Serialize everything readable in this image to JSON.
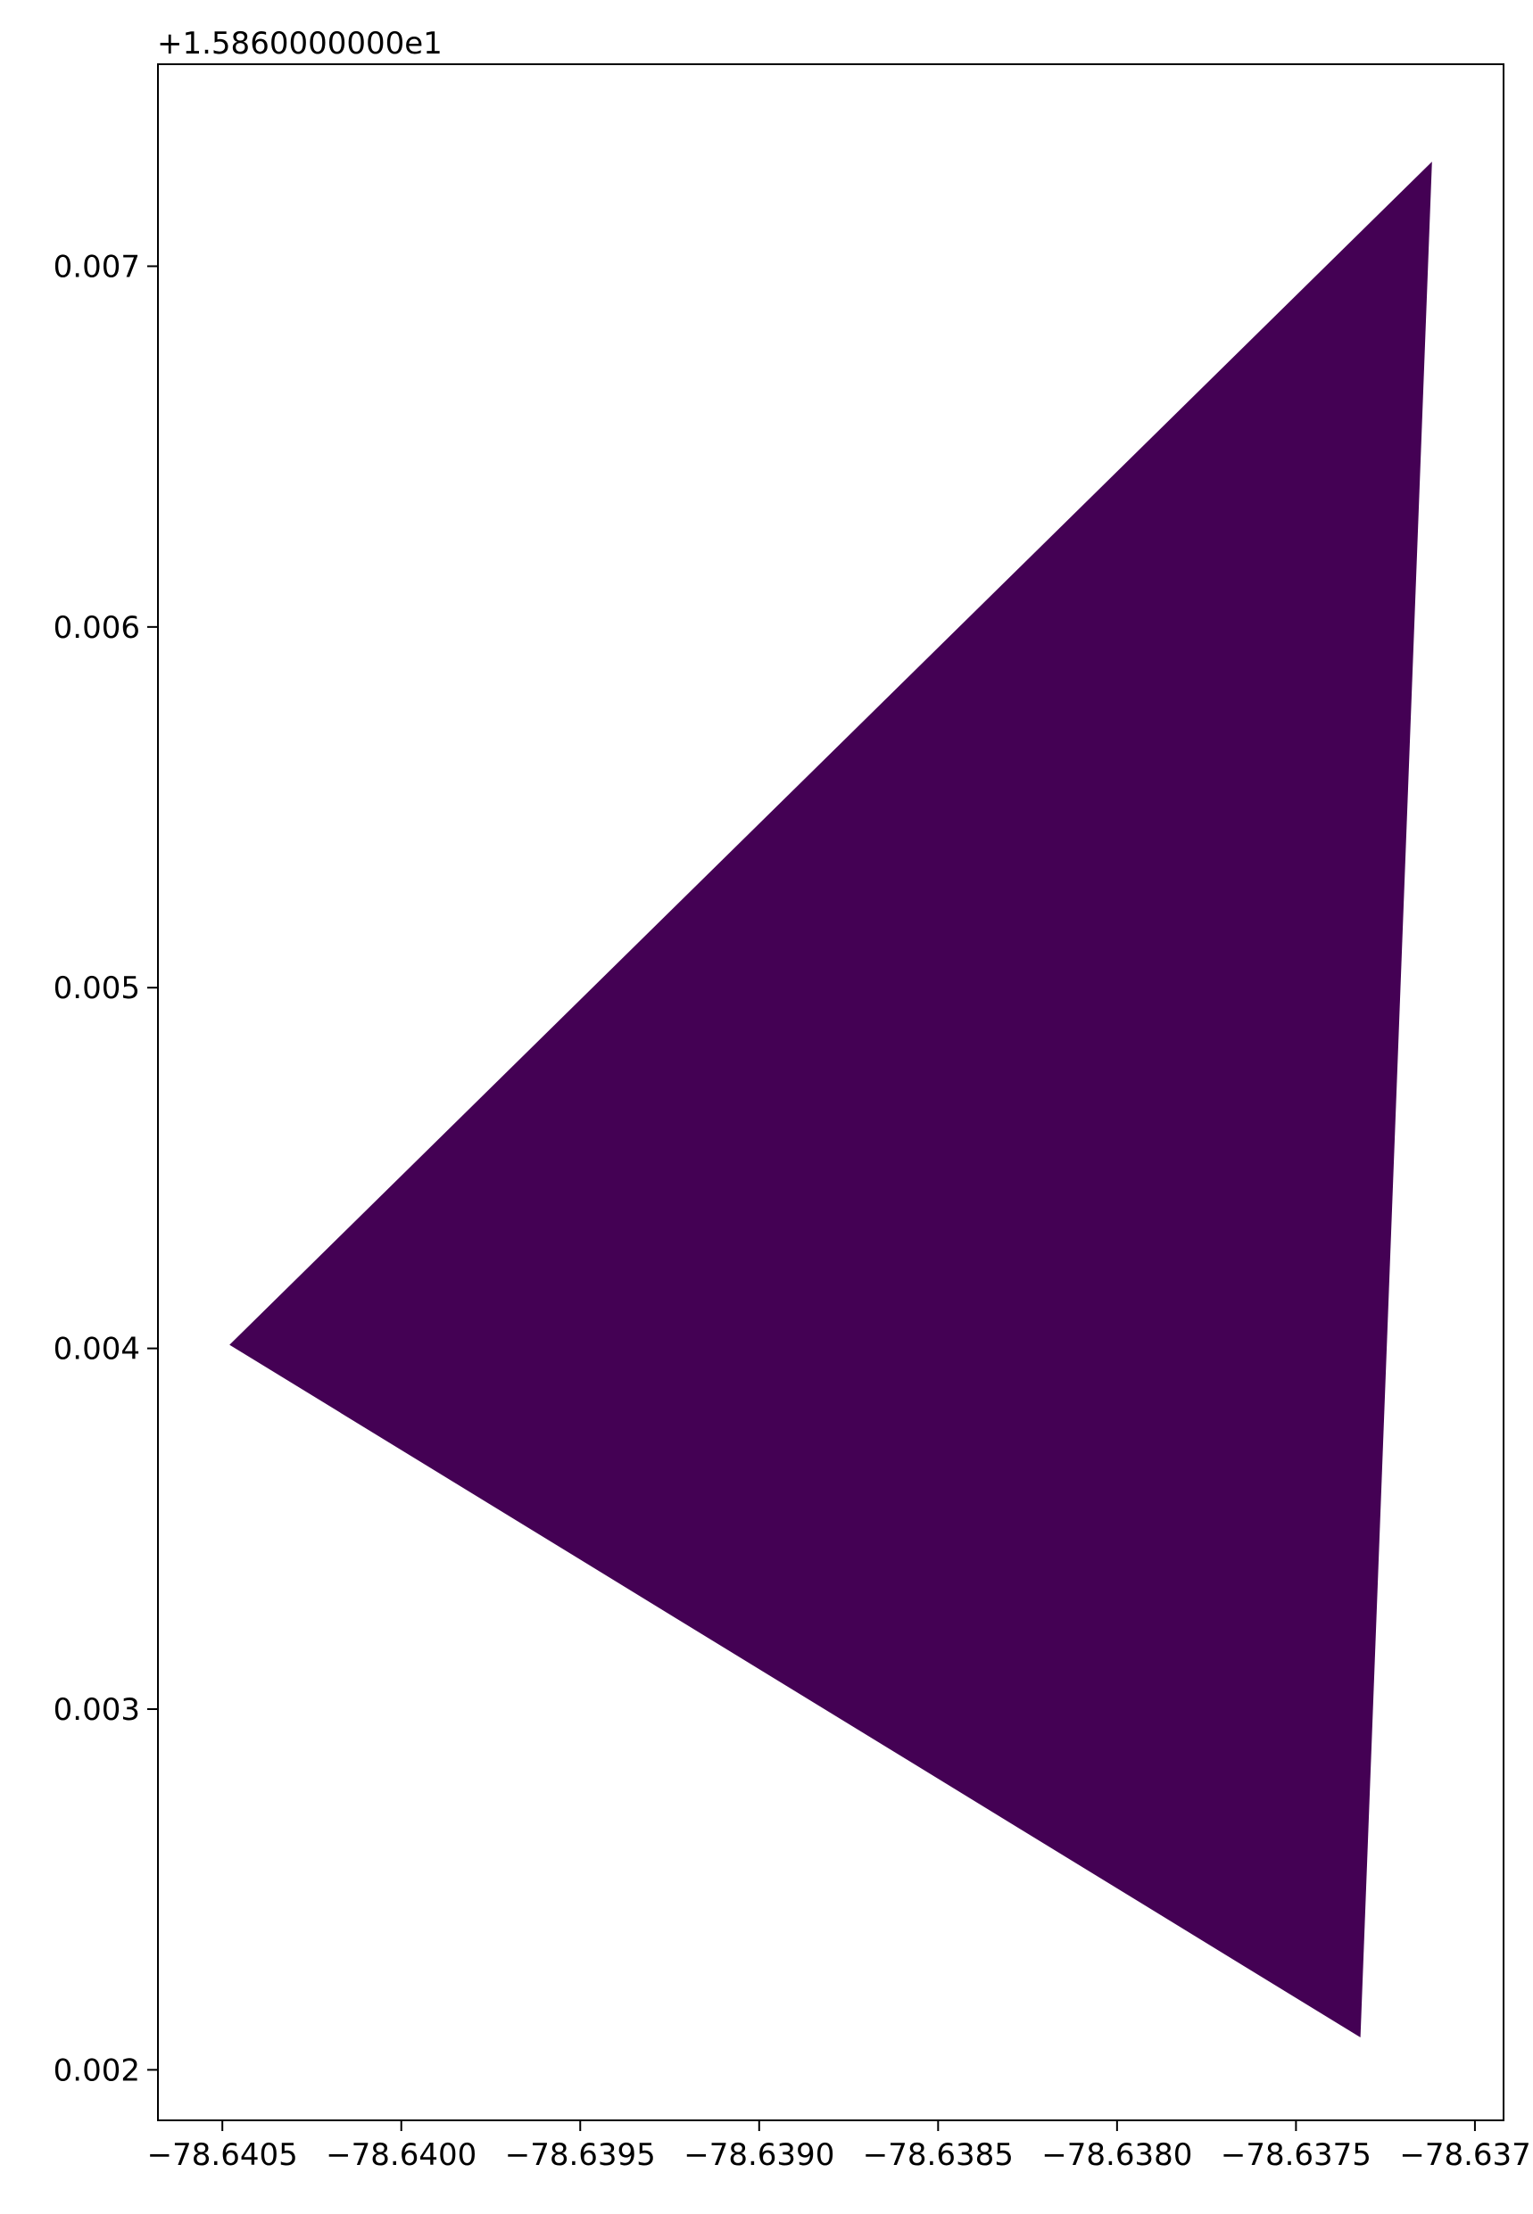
{
  "chart_data": {
    "type": "area",
    "title": "",
    "xlabel": "",
    "ylabel": "",
    "y_offset_label": "+1.5860000000e1",
    "xlim": [
      -78.64068,
      -78.63692
    ],
    "ylim": [
      0.00186,
      0.00756
    ],
    "x_ticks": [
      -78.6405,
      -78.64,
      -78.6395,
      -78.639,
      -78.6385,
      -78.638,
      -78.6375,
      -78.637
    ],
    "x_tick_labels": [
      "−78.6405",
      "−78.6400",
      "−78.6395",
      "−78.6390",
      "−78.6385",
      "−78.6380",
      "−78.6375",
      "−78.6370"
    ],
    "y_ticks": [
      0.002,
      0.003,
      0.004,
      0.005,
      0.006,
      0.007
    ],
    "y_tick_labels": [
      "0.002",
      "0.003",
      "0.004",
      "0.005",
      "0.006",
      "0.007"
    ],
    "polygon": {
      "fill": "#440154",
      "points": [
        {
          "x": -78.64048,
          "y": 0.00401
        },
        {
          "x": -78.63712,
          "y": 0.00729
        },
        {
          "x": -78.63732,
          "y": 0.00209
        }
      ]
    },
    "grid": false
  }
}
